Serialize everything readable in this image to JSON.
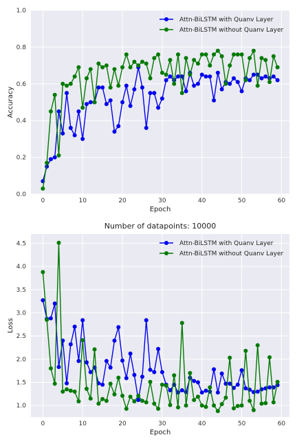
{
  "chart_data": [
    {
      "type": "line",
      "title": "",
      "xlabel": "Epoch",
      "ylabel": "Accuracy",
      "xlim": [
        -3,
        62
      ],
      "ylim": [
        0.0,
        1.0
      ],
      "xticks": [
        0,
        10,
        20,
        30,
        40,
        50,
        60
      ],
      "yticks": [
        0.0,
        0.2,
        0.4,
        0.6,
        0.8,
        1.0
      ],
      "ytick_labels": [
        "0.0",
        "0.2",
        "0.4",
        "0.6",
        "0.8",
        "1.0"
      ],
      "grid": true,
      "legend": "top-right",
      "x": [
        0,
        1,
        2,
        3,
        4,
        5,
        6,
        7,
        8,
        9,
        10,
        11,
        12,
        13,
        14,
        15,
        16,
        17,
        18,
        19,
        20,
        21,
        22,
        23,
        24,
        25,
        26,
        27,
        28,
        29,
        30,
        31,
        32,
        33,
        34,
        35,
        36,
        37,
        38,
        39,
        40,
        41,
        42,
        43,
        44,
        45,
        46,
        47,
        48,
        49,
        50,
        51,
        52,
        53,
        54,
        55,
        56,
        57,
        58,
        59
      ],
      "series": [
        {
          "name": "Attn-BiLSTM with Quanv Layer",
          "color": "#0000ee",
          "values": [
            0.07,
            0.15,
            0.19,
            0.2,
            0.45,
            0.33,
            0.55,
            0.36,
            0.32,
            0.45,
            0.3,
            0.49,
            0.5,
            0.5,
            0.58,
            0.58,
            0.49,
            0.51,
            0.34,
            0.37,
            0.5,
            0.59,
            0.48,
            0.57,
            0.69,
            0.58,
            0.36,
            0.55,
            0.55,
            0.47,
            0.52,
            0.62,
            0.64,
            0.62,
            0.64,
            0.64,
            0.56,
            0.66,
            0.59,
            0.6,
            0.65,
            0.64,
            0.64,
            0.51,
            0.66,
            0.57,
            0.61,
            0.6,
            0.63,
            0.61,
            0.56,
            0.63,
            0.62,
            0.65,
            0.65,
            0.63,
            0.64,
            0.63,
            0.64,
            0.62
          ]
        },
        {
          "name": "Attn-BiLSTM without Quanv Layer",
          "color": "#007a00",
          "values": [
            0.03,
            0.17,
            0.45,
            0.54,
            0.21,
            0.6,
            0.59,
            0.6,
            0.64,
            0.69,
            0.47,
            0.63,
            0.68,
            0.5,
            0.71,
            0.69,
            0.7,
            0.58,
            0.68,
            0.59,
            0.69,
            0.76,
            0.69,
            0.72,
            0.7,
            0.72,
            0.71,
            0.63,
            0.74,
            0.76,
            0.66,
            0.65,
            0.73,
            0.6,
            0.76,
            0.55,
            0.74,
            0.65,
            0.73,
            0.71,
            0.76,
            0.76,
            0.7,
            0.76,
            0.78,
            0.75,
            0.6,
            0.7,
            0.76,
            0.76,
            0.76,
            0.62,
            0.74,
            0.78,
            0.59,
            0.74,
            0.73,
            0.61,
            0.75,
            0.69
          ]
        }
      ]
    },
    {
      "type": "line",
      "title": "Number of datapoints: 10000",
      "xlabel": "Epoch",
      "ylabel": "Loss",
      "xlim": [
        -3,
        62
      ],
      "ylim": [
        0.75,
        4.7
      ],
      "xticks": [
        0,
        10,
        20,
        30,
        40,
        50,
        60
      ],
      "yticks": [
        1.0,
        1.5,
        2.0,
        2.5,
        3.0,
        3.5,
        4.0,
        4.5
      ],
      "ytick_labels": [
        "1.0",
        "1.5",
        "2.0",
        "2.5",
        "3.0",
        "3.5",
        "4.0",
        "4.5"
      ],
      "grid": true,
      "legend": "top-right",
      "x": [
        0,
        1,
        2,
        3,
        4,
        5,
        6,
        7,
        8,
        9,
        10,
        11,
        12,
        13,
        14,
        15,
        16,
        17,
        18,
        19,
        20,
        21,
        22,
        23,
        24,
        25,
        26,
        27,
        28,
        29,
        30,
        31,
        32,
        33,
        34,
        35,
        36,
        37,
        38,
        39,
        40,
        41,
        42,
        43,
        44,
        45,
        46,
        47,
        48,
        49,
        50,
        51,
        52,
        53,
        54,
        55,
        56,
        57,
        58,
        59
      ],
      "series": [
        {
          "name": "Attn-BiLSTM with Quanv Layer",
          "color": "#0000ee",
          "values": [
            3.27,
            2.87,
            2.88,
            3.2,
            1.83,
            2.4,
            1.48,
            2.32,
            2.7,
            1.96,
            2.84,
            1.93,
            1.72,
            1.82,
            1.48,
            1.45,
            1.96,
            1.82,
            2.4,
            2.69,
            1.97,
            1.59,
            2.12,
            1.66,
            1.12,
            1.62,
            2.84,
            1.77,
            1.72,
            2.22,
            1.72,
            1.45,
            1.33,
            1.45,
            1.28,
            1.33,
            1.29,
            1.6,
            1.53,
            1.5,
            1.28,
            1.32,
            1.3,
            1.78,
            1.28,
            1.69,
            1.47,
            1.47,
            1.38,
            1.45,
            1.76,
            1.37,
            1.34,
            1.29,
            1.3,
            1.35,
            1.37,
            1.39,
            1.39,
            1.44
          ]
        },
        {
          "name": "Attn-BiLSTM without Quanv Layer",
          "color": "#007a00",
          "values": [
            3.88,
            2.85,
            1.8,
            1.47,
            4.51,
            1.3,
            1.35,
            1.32,
            1.3,
            1.09,
            2.41,
            1.36,
            1.15,
            2.21,
            1.04,
            1.14,
            1.1,
            1.47,
            1.24,
            1.6,
            1.21,
            0.93,
            1.19,
            1.09,
            1.21,
            1.1,
            1.07,
            1.51,
            1.04,
            0.93,
            1.45,
            1.43,
            1.01,
            1.65,
            0.96,
            2.78,
            1.0,
            1.7,
            1.12,
            1.19,
            1.0,
            0.97,
            1.39,
            1.0,
            0.88,
            1.03,
            1.17,
            2.03,
            0.94,
            0.99,
            1.0,
            2.18,
            1.1,
            0.9,
            2.3,
            1.04,
            1.05,
            2.04,
            1.07,
            1.51
          ]
        }
      ]
    }
  ]
}
